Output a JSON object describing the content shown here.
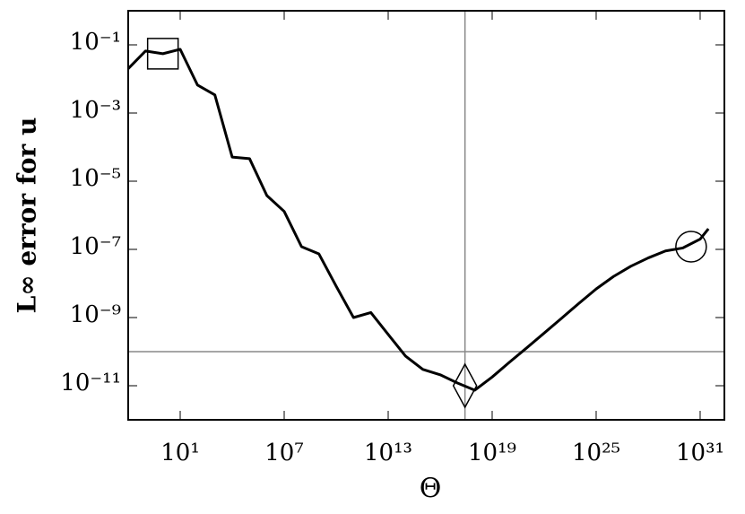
{
  "chart_data": {
    "type": "line",
    "xlabel": "Θ",
    "ylabel": "L∞ error for u",
    "xscale": "log",
    "yscale": "log",
    "xlim": [
      0.01,
      2.5e+32
    ],
    "ylim": [
      1e-12,
      1
    ],
    "xticks": [
      {
        "value": 10,
        "label": "10¹"
      },
      {
        "value": 10000000.0,
        "label": "10⁷"
      },
      {
        "value": 10000000000000.0,
        "label": "10¹³"
      },
      {
        "value": 1e+19,
        "label": "10¹⁹"
      },
      {
        "value": 1e+25,
        "label": "10²⁵"
      },
      {
        "value": 1e+31,
        "label": "10³¹"
      }
    ],
    "yticks": [
      {
        "value": 0.1,
        "label": "10⁻¹"
      },
      {
        "value": 0.001,
        "label": "10⁻³"
      },
      {
        "value": 1e-05,
        "label": "10⁻⁵"
      },
      {
        "value": 1e-07,
        "label": "10⁻⁷"
      },
      {
        "value": 1e-09,
        "label": "10⁻⁹"
      },
      {
        "value": 1e-11,
        "label": "10⁻¹¹"
      }
    ],
    "series": [
      {
        "color": "#000000",
        "x": [
          0.01,
          0.1,
          1,
          10,
          100,
          1000,
          10000.0,
          100000.0,
          1000000.0,
          10000000.0,
          100000000.0,
          1000000000.0,
          10000000000.0,
          100000000000.0,
          1000000000000.0,
          10000000000000.0,
          100000000000000.0,
          1000000000000000.0,
          1e+16,
          1e+17,
          1e+18,
          1e+19,
          1e+20,
          1e+21,
          1e+22,
          1e+23,
          1e+24,
          1e+25,
          1e+26,
          1e+27,
          1e+28,
          1e+29,
          1e+30,
          1e+31,
          3e+31
        ],
        "values": [
          0.02,
          0.066,
          0.055,
          0.074,
          0.0066,
          0.0034,
          5.1e-05,
          4.6e-05,
          3.8e-06,
          1.3e-06,
          1.2e-07,
          7.4e-08,
          8.3e-09,
          1e-09,
          1.4e-09,
          3.2e-10,
          7.4e-11,
          3e-11,
          2.1e-11,
          1.2e-11,
          7.4e-12,
          1.8e-11,
          4.9e-11,
          1.3e-10,
          3.5e-10,
          9.5e-10,
          2.6e-09,
          6.9e-09,
          1.6e-08,
          3.2e-08,
          5.6e-08,
          9e-08,
          1.1e-07,
          2e-07,
          4e-07
        ]
      }
    ],
    "reference_lines": {
      "x": 2.7e+17,
      "y": 1e-10,
      "color": "#888888"
    },
    "markers": [
      {
        "shape": "square",
        "x": 1,
        "y": 0.055
      },
      {
        "shape": "diamond",
        "x": 2.7e+17,
        "y": 1e-11
      },
      {
        "shape": "circle",
        "x": 3e+30,
        "y": 1.2e-07
      }
    ]
  }
}
